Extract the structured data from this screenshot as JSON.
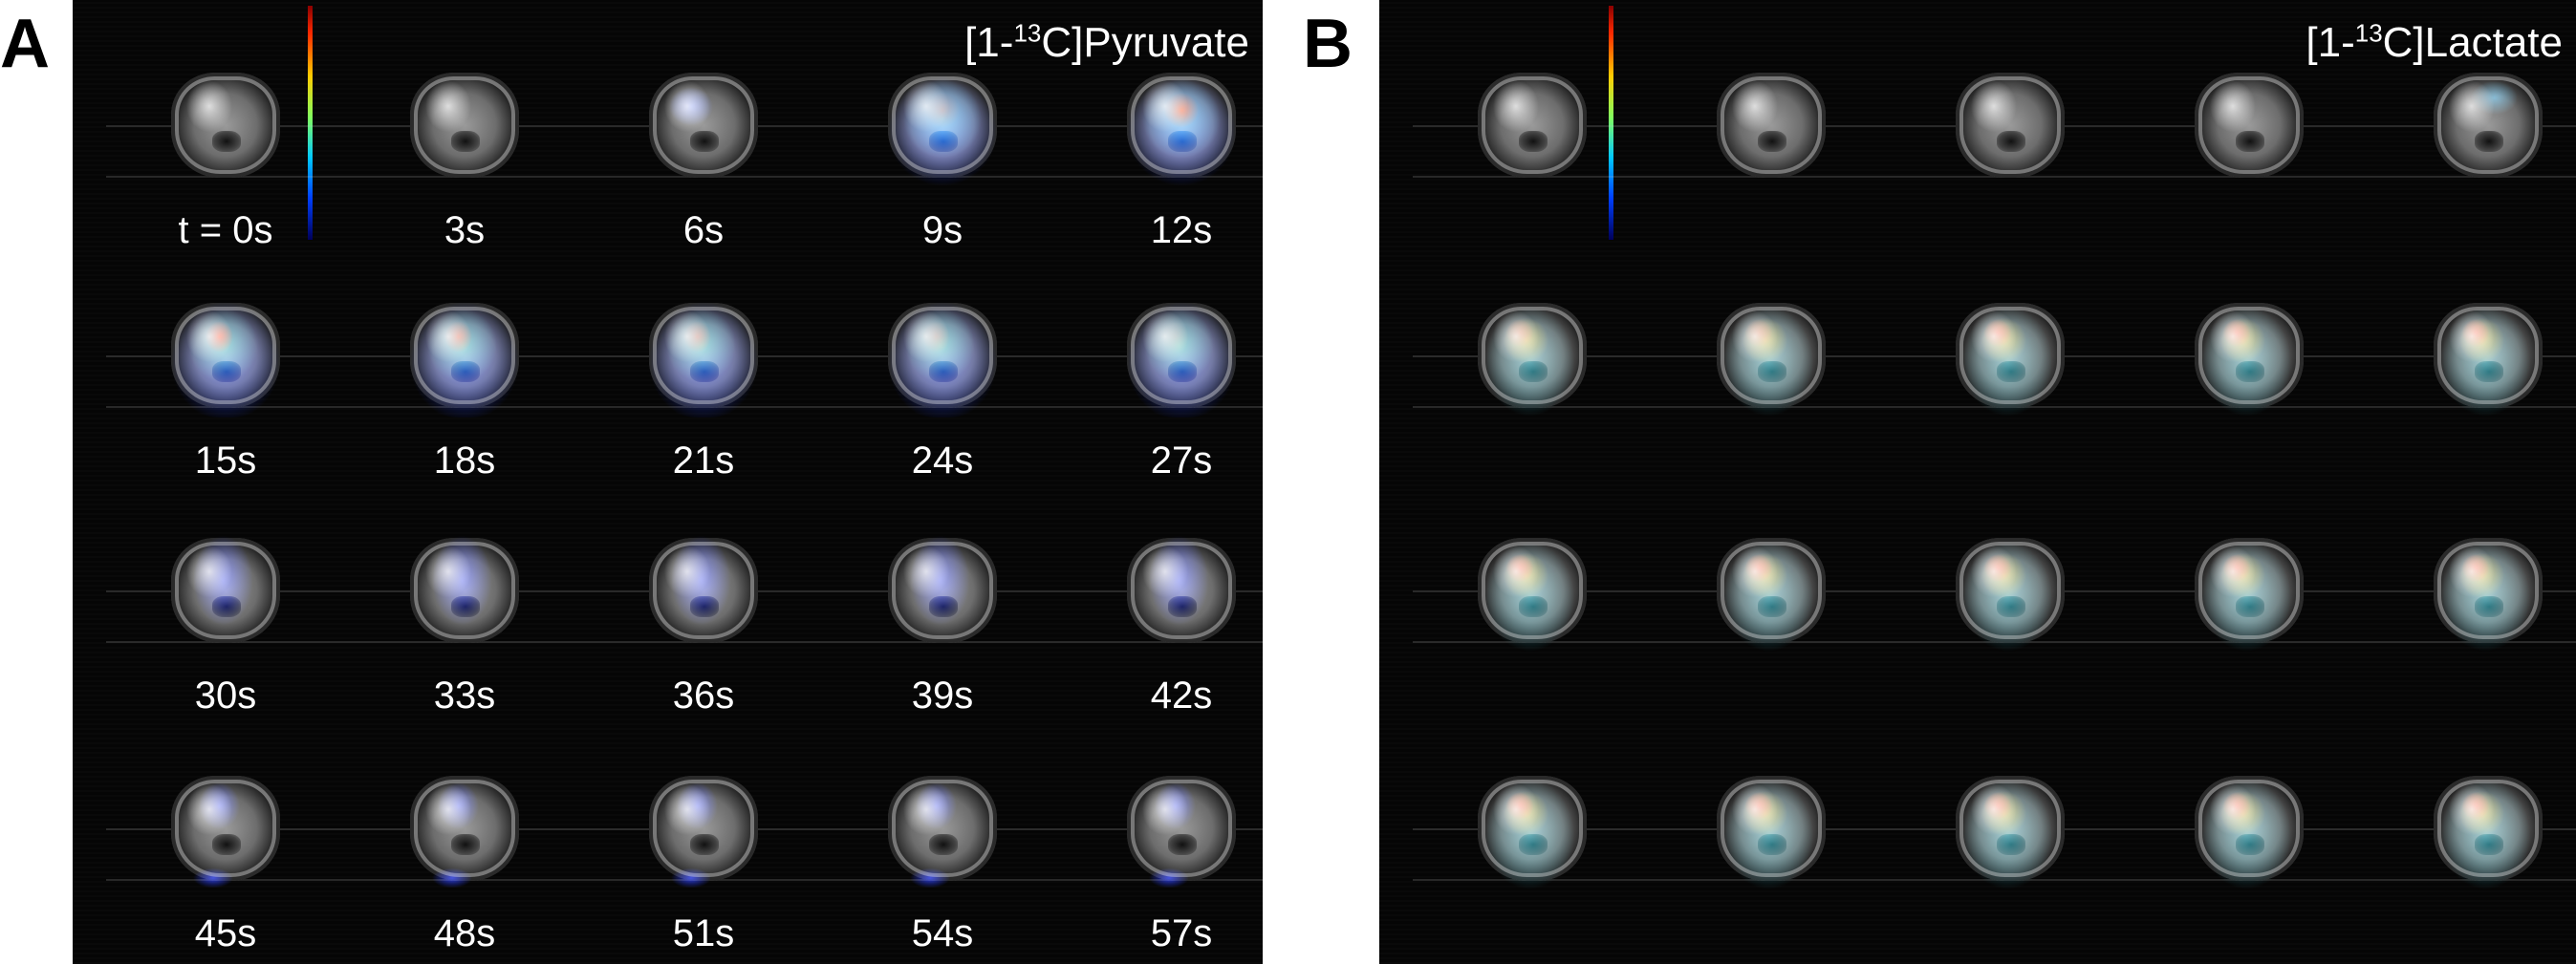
{
  "panels": {
    "a": {
      "label": "A",
      "title_prefix": "[1-",
      "title_sup": "13",
      "title_suffix": "C]Pyruvate"
    },
    "b": {
      "label": "B",
      "title_prefix": "[1-",
      "title_sup": "13",
      "title_suffix": "C]Lactate"
    }
  },
  "time_labels": [
    "t = 0s",
    "3s",
    "6s",
    "9s",
    "12s",
    "15s",
    "18s",
    "21s",
    "24s",
    "27s",
    "30s",
    "33s",
    "36s",
    "39s",
    "42s",
    "45s",
    "48s",
    "51s",
    "54s",
    "57s"
  ],
  "colorscale": [
    "#8b0000",
    "#ff2a00",
    "#ffcc00",
    "#80ff60",
    "#00c8ff",
    "#0040ff",
    "#00005a"
  ]
}
